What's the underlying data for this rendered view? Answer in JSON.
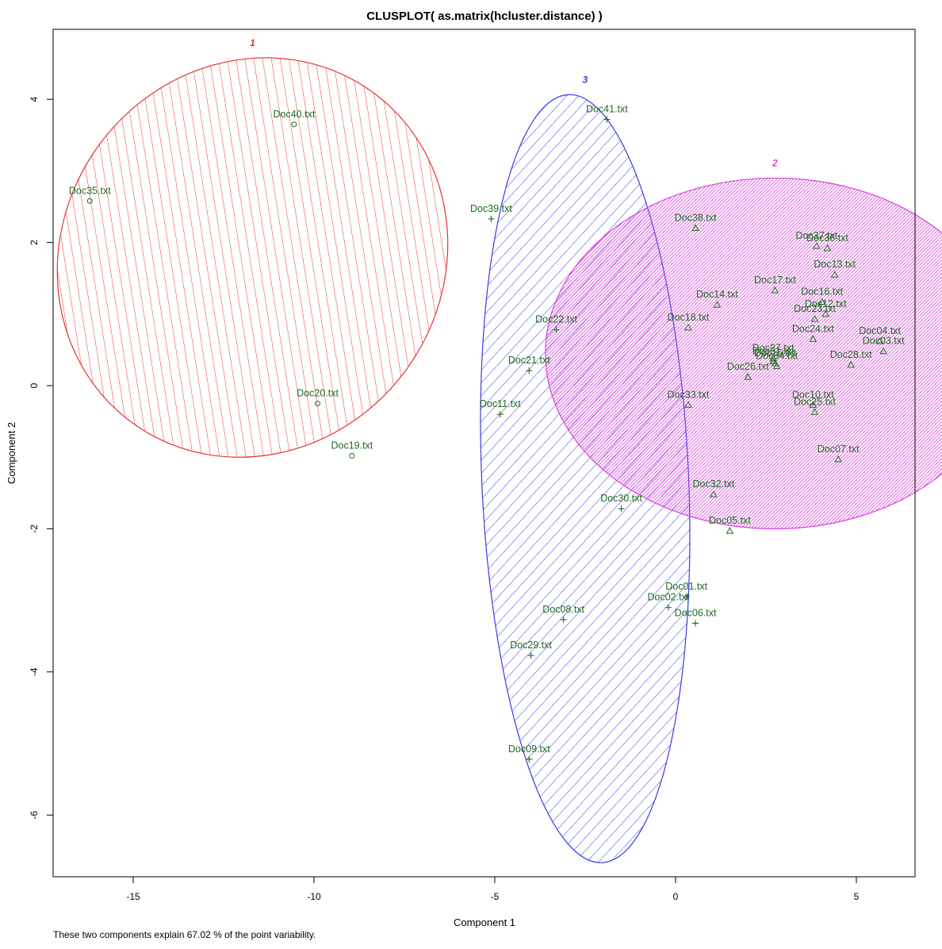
{
  "chart_data": {
    "type": "scatter",
    "title": "CLUSPLOT( as.matrix(hcluster.distance) )",
    "xlabel": "Component 1",
    "ylabel": "Component 2",
    "xlim": [
      -17.2,
      13.3
    ],
    "ylim": [
      -6.8,
      4.95
    ],
    "x_ticks": [
      -15,
      -10,
      -5,
      0,
      5
    ],
    "y_ticks": [
      -6,
      -4,
      -2,
      0,
      2,
      4
    ],
    "footnote": "These two components explain 67.02 % of the point variability.",
    "point_color": "#1e6b1e",
    "clusters": [
      {
        "label": "1",
        "color": "#e8322f",
        "fill": "hatched",
        "hatch_angle": 45,
        "ellipse": {
          "cx": -11.7,
          "cy": 1.79,
          "rx": 5.65,
          "ry": 2.66,
          "angle": -54
        },
        "marker": "circle",
        "points": [
          {
            "label": "Doc40.txt",
            "x": -10.55,
            "y": 3.65
          },
          {
            "label": "Doc35.txt",
            "x": -16.2,
            "y": 2.58
          },
          {
            "label": "Doc20.txt",
            "x": -9.9,
            "y": -0.25
          },
          {
            "label": "Doc19.txt",
            "x": -8.95,
            "y": -0.98
          }
        ]
      },
      {
        "label": "2",
        "color": "#dd3de0",
        "fill": "solid-hatched",
        "hatch_angle": 45,
        "ellipse": {
          "cx": 2.75,
          "cy": 0.45,
          "rx": 6.35,
          "ry": 2.45,
          "angle": 0
        },
        "marker": "triangle",
        "points": [
          {
            "label": "Doc38.txt",
            "x": 0.55,
            "y": 2.2
          },
          {
            "label": "Doc37.txt",
            "x": 3.9,
            "y": 1.95
          },
          {
            "label": "Doc36.txt",
            "x": 4.2,
            "y": 1.92
          },
          {
            "label": "Doc13.txt",
            "x": 4.4,
            "y": 1.55
          },
          {
            "label": "Doc17.txt",
            "x": 2.75,
            "y": 1.33
          },
          {
            "label": "Doc16.txt",
            "x": 4.05,
            "y": 1.17
          },
          {
            "label": "Doc14.txt",
            "x": 1.15,
            "y": 1.13
          },
          {
            "label": "Doc12.txt",
            "x": 4.15,
            "y": 1.0
          },
          {
            "label": "Doc23.txt",
            "x": 3.85,
            "y": 0.93
          },
          {
            "label": "Doc18.txt",
            "x": 0.35,
            "y": 0.81
          },
          {
            "label": "Doc24.txt",
            "x": 3.8,
            "y": 0.65
          },
          {
            "label": "Doc04.txt",
            "x": 5.65,
            "y": 0.62
          },
          {
            "label": "Doc03.txt",
            "x": 5.75,
            "y": 0.48
          },
          {
            "label": "Doc27.txt",
            "x": 2.7,
            "y": 0.38
          },
          {
            "label": "Doc31.txt",
            "x": 2.7,
            "y": 0.34
          },
          {
            "label": "Doc15.txt",
            "x": 2.75,
            "y": 0.31
          },
          {
            "label": "Doc34.txt",
            "x": 2.8,
            "y": 0.27
          },
          {
            "label": "Doc28.txt",
            "x": 4.85,
            "y": 0.29
          },
          {
            "label": "Doc26.txt",
            "x": 2.0,
            "y": 0.12
          },
          {
            "label": "Doc33.txt",
            "x": 0.35,
            "y": -0.27
          },
          {
            "label": "Doc10.txt",
            "x": 3.8,
            "y": -0.27
          },
          {
            "label": "Doc25.txt",
            "x": 3.85,
            "y": -0.37
          },
          {
            "label": "Doc07.txt",
            "x": 4.5,
            "y": -1.03
          },
          {
            "label": "Doc32.txt",
            "x": 1.05,
            "y": -1.52
          },
          {
            "label": "Doc05.txt",
            "x": 1.5,
            "y": -2.03
          }
        ]
      },
      {
        "label": "3",
        "color": "#3a3ae6",
        "fill": "hatched",
        "hatch_angle": 45,
        "ellipse": {
          "cx": -2.5,
          "cy": -1.3,
          "rx": 2.86,
          "ry": 5.37,
          "angle": -2.5
        },
        "marker": "plus",
        "points": [
          {
            "label": "Doc41.txt",
            "x": -1.9,
            "y": 3.72
          },
          {
            "label": "Doc39.txt",
            "x": -5.1,
            "y": 2.33
          },
          {
            "label": "Doc22.txt",
            "x": -3.3,
            "y": 0.78
          },
          {
            "label": "Doc21.txt",
            "x": -4.05,
            "y": 0.21
          },
          {
            "label": "Doc11.txt",
            "x": -4.85,
            "y": -0.4
          },
          {
            "label": "Doc30.txt",
            "x": -1.5,
            "y": -1.72
          },
          {
            "label": "Doc01.txt",
            "x": 0.3,
            "y": -2.95
          },
          {
            "label": "Doc02.txt",
            "x": -0.2,
            "y": -3.1
          },
          {
            "label": "Doc06.txt",
            "x": 0.55,
            "y": -3.32
          },
          {
            "label": "Doc08.txt",
            "x": -3.1,
            "y": -3.27
          },
          {
            "label": "Doc29.txt",
            "x": -4.0,
            "y": -3.77
          },
          {
            "label": "Doc09.txt",
            "x": -4.05,
            "y": -5.22
          }
        ]
      }
    ]
  }
}
